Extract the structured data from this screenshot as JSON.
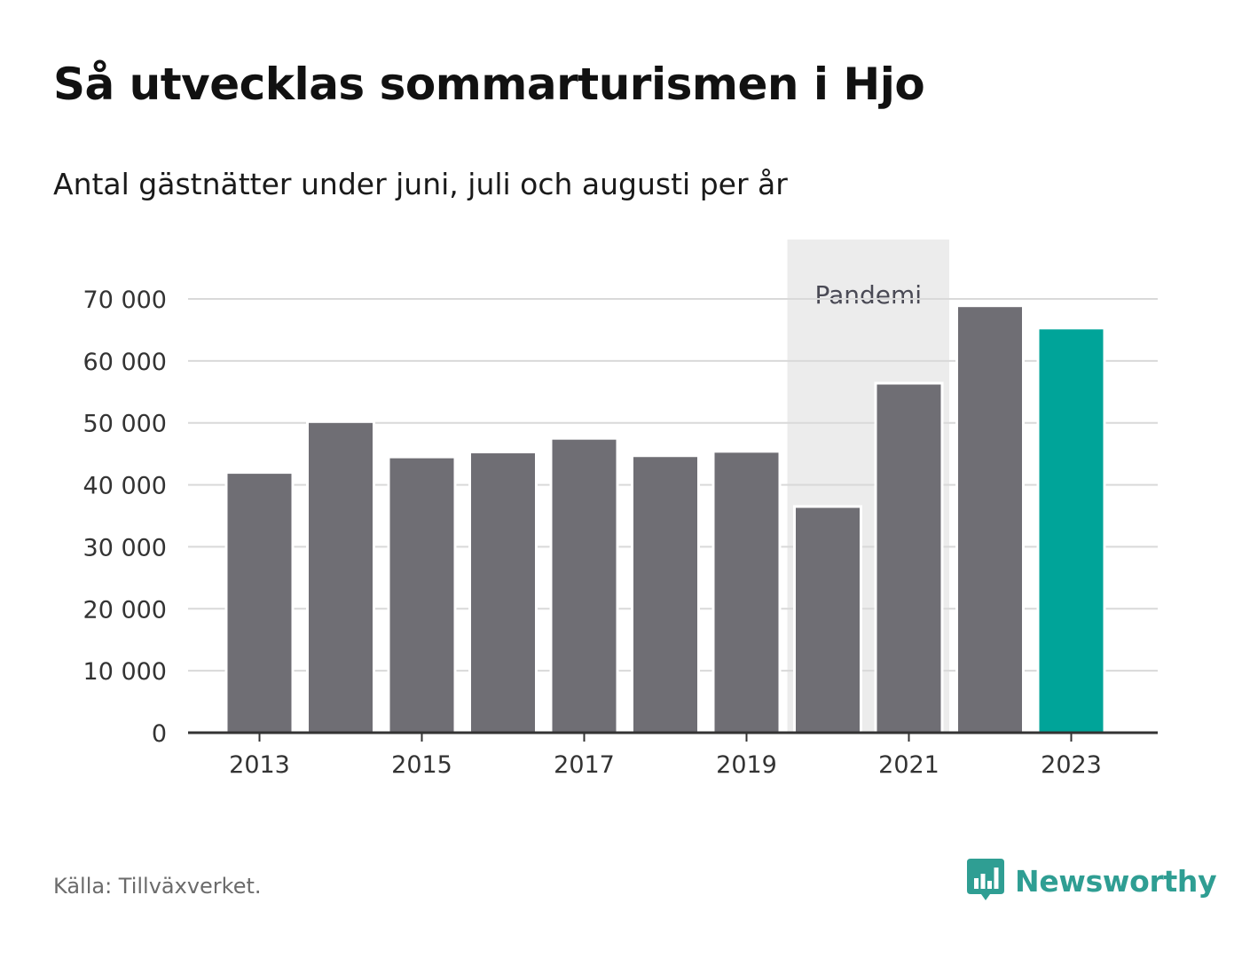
{
  "title": "Så utvecklas sommarturismen i Hjo",
  "subtitle": "Antal gästnätter under juni, juli och augusti per år",
  "source": "Källa: Tillväxverket.",
  "logo": {
    "text": "Newsworthy",
    "icon": "bar-chart-bubble-icon"
  },
  "colors": {
    "bar": "#6f6e74",
    "highlight": "#00a499",
    "band": "#ececec",
    "grid": "#d9d9d9",
    "axis": "#333333",
    "text": "#333333",
    "brand": "#2f9e93"
  },
  "chart_data": {
    "type": "bar",
    "categories": [
      "2013",
      "2014",
      "2015",
      "2016",
      "2017",
      "2018",
      "2019",
      "2020",
      "2021",
      "2022",
      "2023"
    ],
    "x_tick_labels": [
      "2013",
      "2015",
      "2017",
      "2019",
      "2021",
      "2023"
    ],
    "values": [
      42000,
      50200,
      44500,
      45300,
      47500,
      44700,
      45400,
      36500,
      56400,
      68900,
      65300
    ],
    "highlight_category": "2023",
    "ylim": [
      0,
      70000
    ],
    "y_ticks": [
      0,
      10000,
      20000,
      30000,
      40000,
      50000,
      60000,
      70000
    ],
    "y_tick_labels": [
      "0",
      "10 000",
      "20 000",
      "30 000",
      "40 000",
      "50 000",
      "60 000",
      "70 000"
    ],
    "grid": true,
    "annotations": [
      {
        "label": "Pandemi",
        "from": "2020",
        "to": "2021"
      }
    ]
  }
}
